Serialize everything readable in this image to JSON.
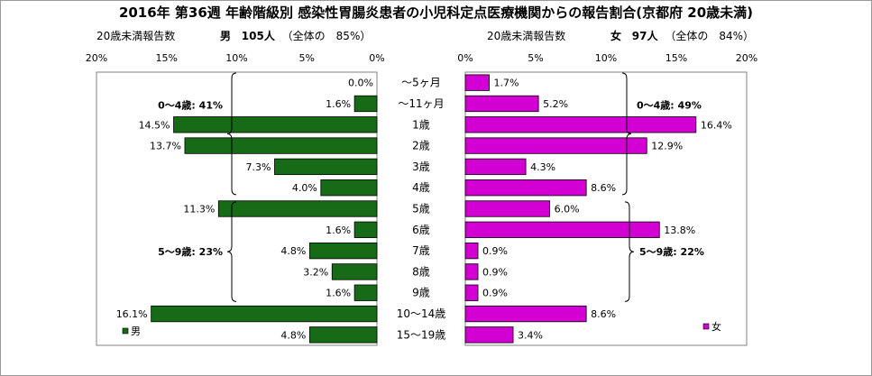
{
  "title": "2016年 第36週 年齢階級別 感染性胃腸炎患者の小児科定点医療機関からの報告割合(京都府 20歳未満)",
  "left_panel": {
    "subtitle_label": "20歳未満報告数",
    "sex_label": "男",
    "count_text": "105人",
    "share_text": "（全体の　85%）",
    "legend_label": "男",
    "color": "#176b17",
    "group_labels": [
      "0～4歳: 41%",
      "5～9歳: 23%"
    ]
  },
  "right_panel": {
    "subtitle_label": "20歳未満報告数",
    "sex_label": "女",
    "count_text": "97人",
    "share_text": "（全体の　84%）",
    "legend_label": "女",
    "color": "#d200d2",
    "group_labels": [
      "0～4歳: 49%",
      "5～9歳: 22%"
    ]
  },
  "chart_data": {
    "type": "bar",
    "orientation": "horizontal-butterfly",
    "categories": [
      "～5ヶ月",
      "～11ヶ月",
      "1歳",
      "2歳",
      "3歳",
      "4歳",
      "5歳",
      "6歳",
      "7歳",
      "8歳",
      "9歳",
      "10～14歳",
      "15～19歳"
    ],
    "series": [
      {
        "name": "男",
        "values": [
          0.0,
          1.6,
          14.5,
          13.7,
          7.3,
          4.0,
          11.3,
          1.6,
          4.8,
          3.2,
          1.6,
          16.1,
          4.8
        ],
        "labels": [
          "0.0%",
          "1.6%",
          "14.5%",
          "13.7%",
          "7.3%",
          "4.0%",
          "11.3%",
          "1.6%",
          "4.8%",
          "3.2%",
          "1.6%",
          "16.1%",
          "4.8%"
        ]
      },
      {
        "name": "女",
        "values": [
          1.7,
          5.2,
          16.4,
          12.9,
          4.3,
          8.6,
          6.0,
          13.8,
          0.9,
          0.9,
          0.9,
          8.6,
          3.4
        ],
        "labels": [
          "1.7%",
          "5.2%",
          "16.4%",
          "12.9%",
          "4.3%",
          "8.6%",
          "6.0%",
          "13.8%",
          "0.9%",
          "0.9%",
          "0.9%",
          "8.6%",
          "3.4%"
        ]
      }
    ],
    "xlim": [
      0,
      20
    ],
    "x_ticks": [
      "0%",
      "5%",
      "10%",
      "15%",
      "20%"
    ],
    "left_x_ticks": [
      "20%",
      "15%",
      "10%",
      "5%",
      "0%"
    ],
    "grid": false,
    "legend_position": "bottom-left / bottom-right"
  }
}
